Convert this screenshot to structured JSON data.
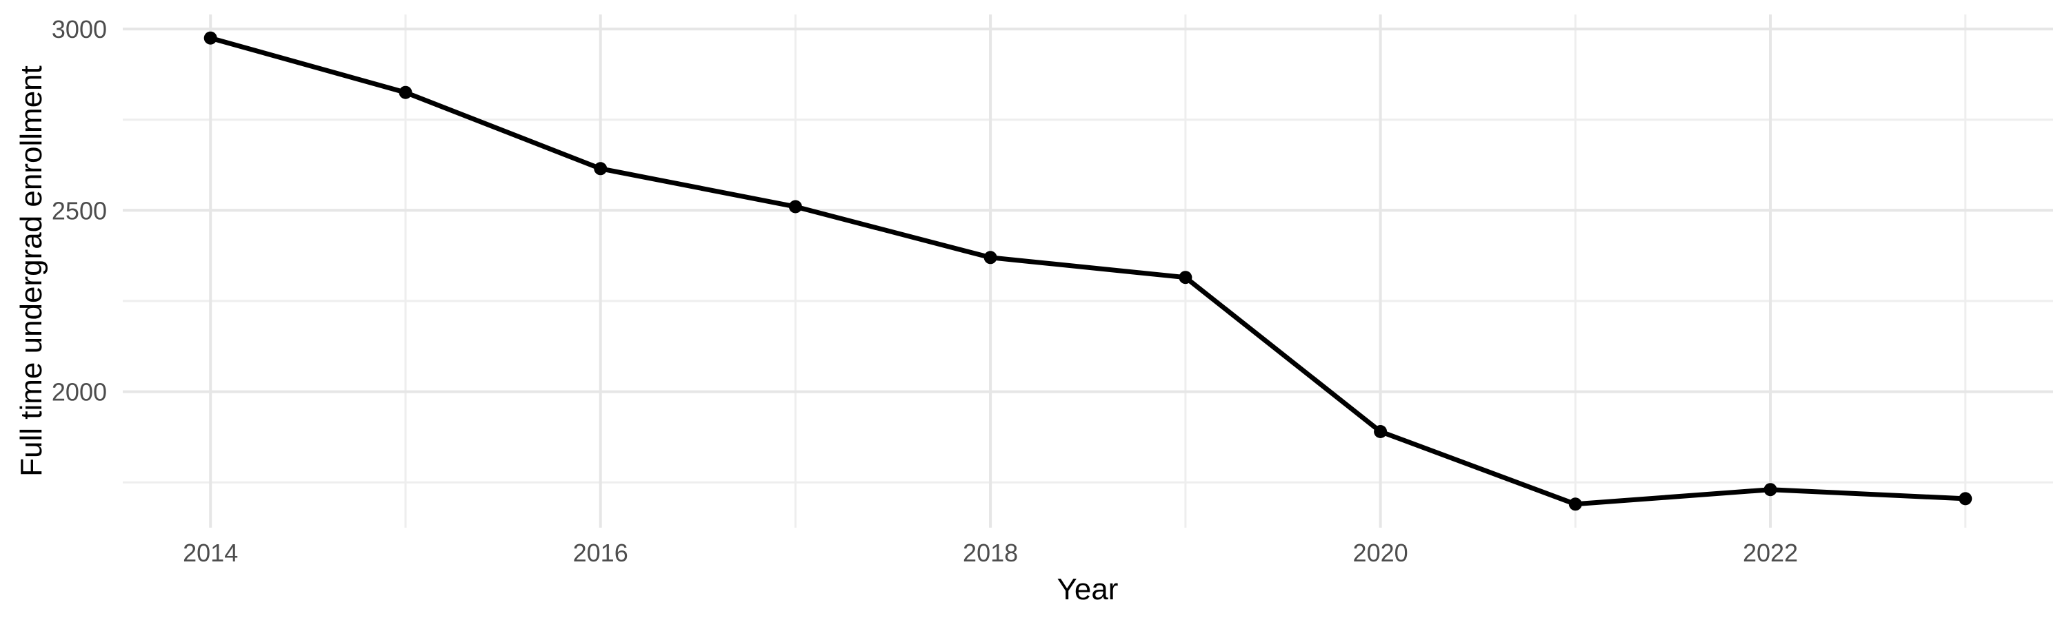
{
  "chart_data": {
    "type": "line",
    "title": "",
    "xlabel": "Year",
    "ylabel": "Full time undergrad enrollment",
    "series": [
      {
        "name": "Full time undergrad enrollment",
        "x": [
          2014,
          2015,
          2016,
          2017,
          2018,
          2019,
          2020,
          2021,
          2022,
          2023
        ],
        "values": [
          2975,
          2825,
          2615,
          2510,
          2370,
          2315,
          1890,
          1690,
          1730,
          1705
        ]
      }
    ],
    "x_tick_labels": [
      "2014",
      "2016",
      "2018",
      "2020",
      "2022"
    ],
    "x_tick_values": [
      2014,
      2016,
      2018,
      2020,
      2022
    ],
    "x_minor_gridlines": [
      2015,
      2017,
      2019,
      2021,
      2023
    ],
    "y_tick_labels": [
      "2000",
      "2500",
      "3000"
    ],
    "y_tick_values": [
      2000,
      2500,
      3000
    ],
    "y_minor_gridlines": [
      1750,
      2250,
      2750
    ],
    "xlim": [
      2013.55,
      2023.45
    ],
    "ylim": [
      1625,
      3040
    ],
    "grid": "major-and-minor",
    "legend": "none",
    "marker": "circle",
    "colors": {
      "line": "#000000",
      "point": "#000000",
      "grid_major": "#E6E6E6",
      "grid_minor": "#EEEEEE",
      "tick_label": "#4D4D4D",
      "axis_title": "#000000",
      "background": "#FFFFFF"
    }
  }
}
